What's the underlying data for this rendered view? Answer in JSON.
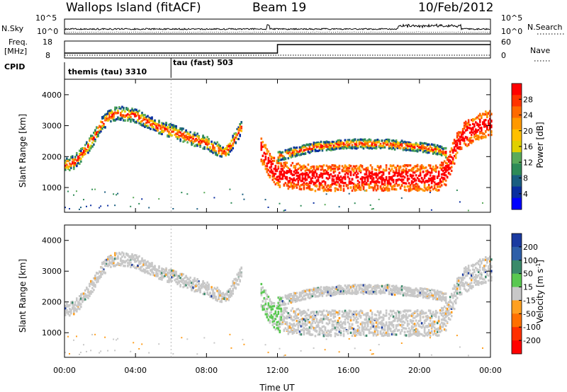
{
  "header": {
    "station": "Wallops Island (fitACF)",
    "beam": "Beam 19",
    "date": "10/Feb/2012"
  },
  "chart_data": {
    "type": "heatmap",
    "x_label": "Time UT",
    "x_ticks": [
      "00:00",
      "04:00",
      "08:00",
      "12:00",
      "16:00",
      "20:00",
      "00:00"
    ],
    "x_hours": [
      0,
      4,
      8,
      12,
      16,
      20,
      24
    ],
    "top_panels": {
      "nsky_label": "N.Sky",
      "nsky_ticks": [
        "10^5",
        "10^0"
      ],
      "nsearch_label": "N.Search",
      "nsearch_ticks": [
        "10^5",
        "10^0"
      ],
      "freq_label": "Freq.",
      "freq_unit": "[MHz]",
      "freq_ticks": [
        "18",
        "8"
      ],
      "nave_label": "Nave",
      "nave_ticks": [
        "60",
        "0"
      ],
      "cpid_label": "CPID",
      "cpid_segments": [
        {
          "label": "themis (tau) 3310",
          "start_hour": 0
        },
        {
          "label": "tau (fast) 503",
          "start_hour": 6
        }
      ]
    },
    "power_panel": {
      "ylabel": "Slant Range [km]",
      "y_ticks": [
        1000,
        2000,
        3000,
        4000
      ],
      "ylim": [
        200,
        4500
      ],
      "colorbar_label": "Power [dB]",
      "colorbar_ticks": [
        "28",
        "24",
        "20",
        "16",
        "12",
        "8",
        "4"
      ],
      "colorbar_colors": [
        "#ff0000",
        "#ff3300",
        "#ff6a00",
        "#ff9900",
        "#ffc000",
        "#e0d000",
        "#5aaa5a",
        "#2e8b57",
        "#1a5e80",
        "#0a2ea0",
        "#0000ff"
      ]
    },
    "velocity_panel": {
      "ylabel": "Slant Range [km]",
      "y_ticks": [
        1000,
        2000,
        3000,
        4000
      ],
      "ylim": [
        200,
        4500
      ],
      "colorbar_label": "Velocity [m s",
      "colorbar_label_sup": "-1",
      "colorbar_label_end": "]",
      "colorbar_ticks": [
        "200",
        "100",
        "50",
        "15",
        "-15",
        "-50",
        "-100",
        "-200"
      ],
      "colorbar_colors": [
        "#1a3aa0",
        "#2e5fa8",
        "#3a8a6a",
        "#59c850",
        "#c8c8c8",
        "#ffa020",
        "#ff7000",
        "#ff3000",
        "#ff0000"
      ]
    },
    "echo_bands": [
      {
        "hours": [
          0.0,
          0.5,
          1.0,
          1.5,
          2.0,
          2.5,
          3.0,
          4.0,
          5.0,
          6.0,
          7.0,
          8.0,
          9.0,
          9.5,
          10.0
        ],
        "range_km": [
          1700,
          1800,
          2100,
          2500,
          3000,
          3300,
          3400,
          3300,
          3000,
          2800,
          2600,
          2400,
          2100,
          2500,
          3000
        ]
      },
      {
        "hours": [
          11.0,
          11.5,
          12.0,
          14.0,
          16.0,
          18.0,
          20.0,
          21.0,
          21.5,
          22.0,
          22.5,
          23.0,
          24.0
        ],
        "range_km": [
          2300,
          1700,
          1400,
          1300,
          1300,
          1300,
          1300,
          1300,
          1500,
          2300,
          2700,
          2900,
          3100
        ]
      },
      {
        "hours": [
          12.0,
          14.0,
          16.0,
          18.0,
          20.0,
          21.0,
          21.5
        ],
        "range_km": [
          2000,
          2300,
          2400,
          2400,
          2300,
          2200,
          2100
        ]
      }
    ]
  }
}
